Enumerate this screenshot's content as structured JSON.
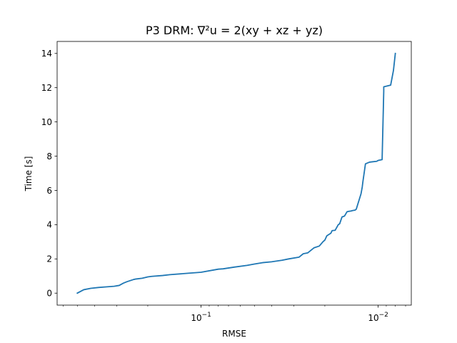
{
  "chart_data": {
    "type": "line",
    "title": "P3 DRM: ∇²u = 2(xy + xz + yz)",
    "xlabel": "RMSE",
    "ylabel": "Time [s]",
    "x_scale": "log",
    "x_inverted": true,
    "xlim": [
      0.65,
      0.0065
    ],
    "ylim": [
      -0.7,
      14.7
    ],
    "x_ticks": [
      {
        "value": 0.1,
        "label_base": "10",
        "label_exp": "−1"
      },
      {
        "value": 0.01,
        "label_base": "10",
        "label_exp": "−2"
      }
    ],
    "y_ticks": [
      0,
      2,
      4,
      6,
      8,
      10,
      12,
      14
    ],
    "grid": false,
    "legend": "none",
    "color": "#1f77b4",
    "series": [
      {
        "x": [
          0.5,
          0.46,
          0.42,
          0.38,
          0.34,
          0.31,
          0.29,
          0.275,
          0.272,
          0.262,
          0.24,
          0.235,
          0.215,
          0.2,
          0.19,
          0.165,
          0.15,
          0.1,
          0.08,
          0.075,
          0.065,
          0.055,
          0.05,
          0.045,
          0.04,
          0.035,
          0.032,
          0.028,
          0.0265,
          0.025,
          0.023,
          0.0215,
          0.0205,
          0.02,
          0.0195,
          0.0185,
          0.0182,
          0.0175,
          0.0168,
          0.0165,
          0.016,
          0.0155,
          0.015,
          0.0148,
          0.0142,
          0.014,
          0.0135,
          0.0133,
          0.0125,
          0.0123,
          0.0122,
          0.0118,
          0.0112,
          0.0108,
          0.0102,
          0.01,
          0.0095,
          0.0093,
          0.0093,
          0.0085,
          0.0082,
          0.008
        ],
        "y": [
          0.0,
          0.2,
          0.28,
          0.33,
          0.37,
          0.4,
          0.45,
          0.58,
          0.6,
          0.67,
          0.8,
          0.82,
          0.87,
          0.95,
          0.98,
          1.03,
          1.08,
          1.22,
          1.4,
          1.42,
          1.52,
          1.62,
          1.7,
          1.78,
          1.83,
          1.92,
          2.0,
          2.1,
          2.3,
          2.35,
          2.65,
          2.75,
          3.0,
          3.1,
          3.35,
          3.5,
          3.65,
          3.67,
          4.0,
          4.05,
          4.45,
          4.5,
          4.75,
          4.77,
          4.8,
          4.82,
          4.85,
          4.9,
          5.8,
          6.2,
          6.5,
          7.55,
          7.65,
          7.67,
          7.7,
          7.75,
          7.8,
          11.8,
          12.05,
          12.15,
          13.0,
          14.0
        ]
      }
    ]
  }
}
